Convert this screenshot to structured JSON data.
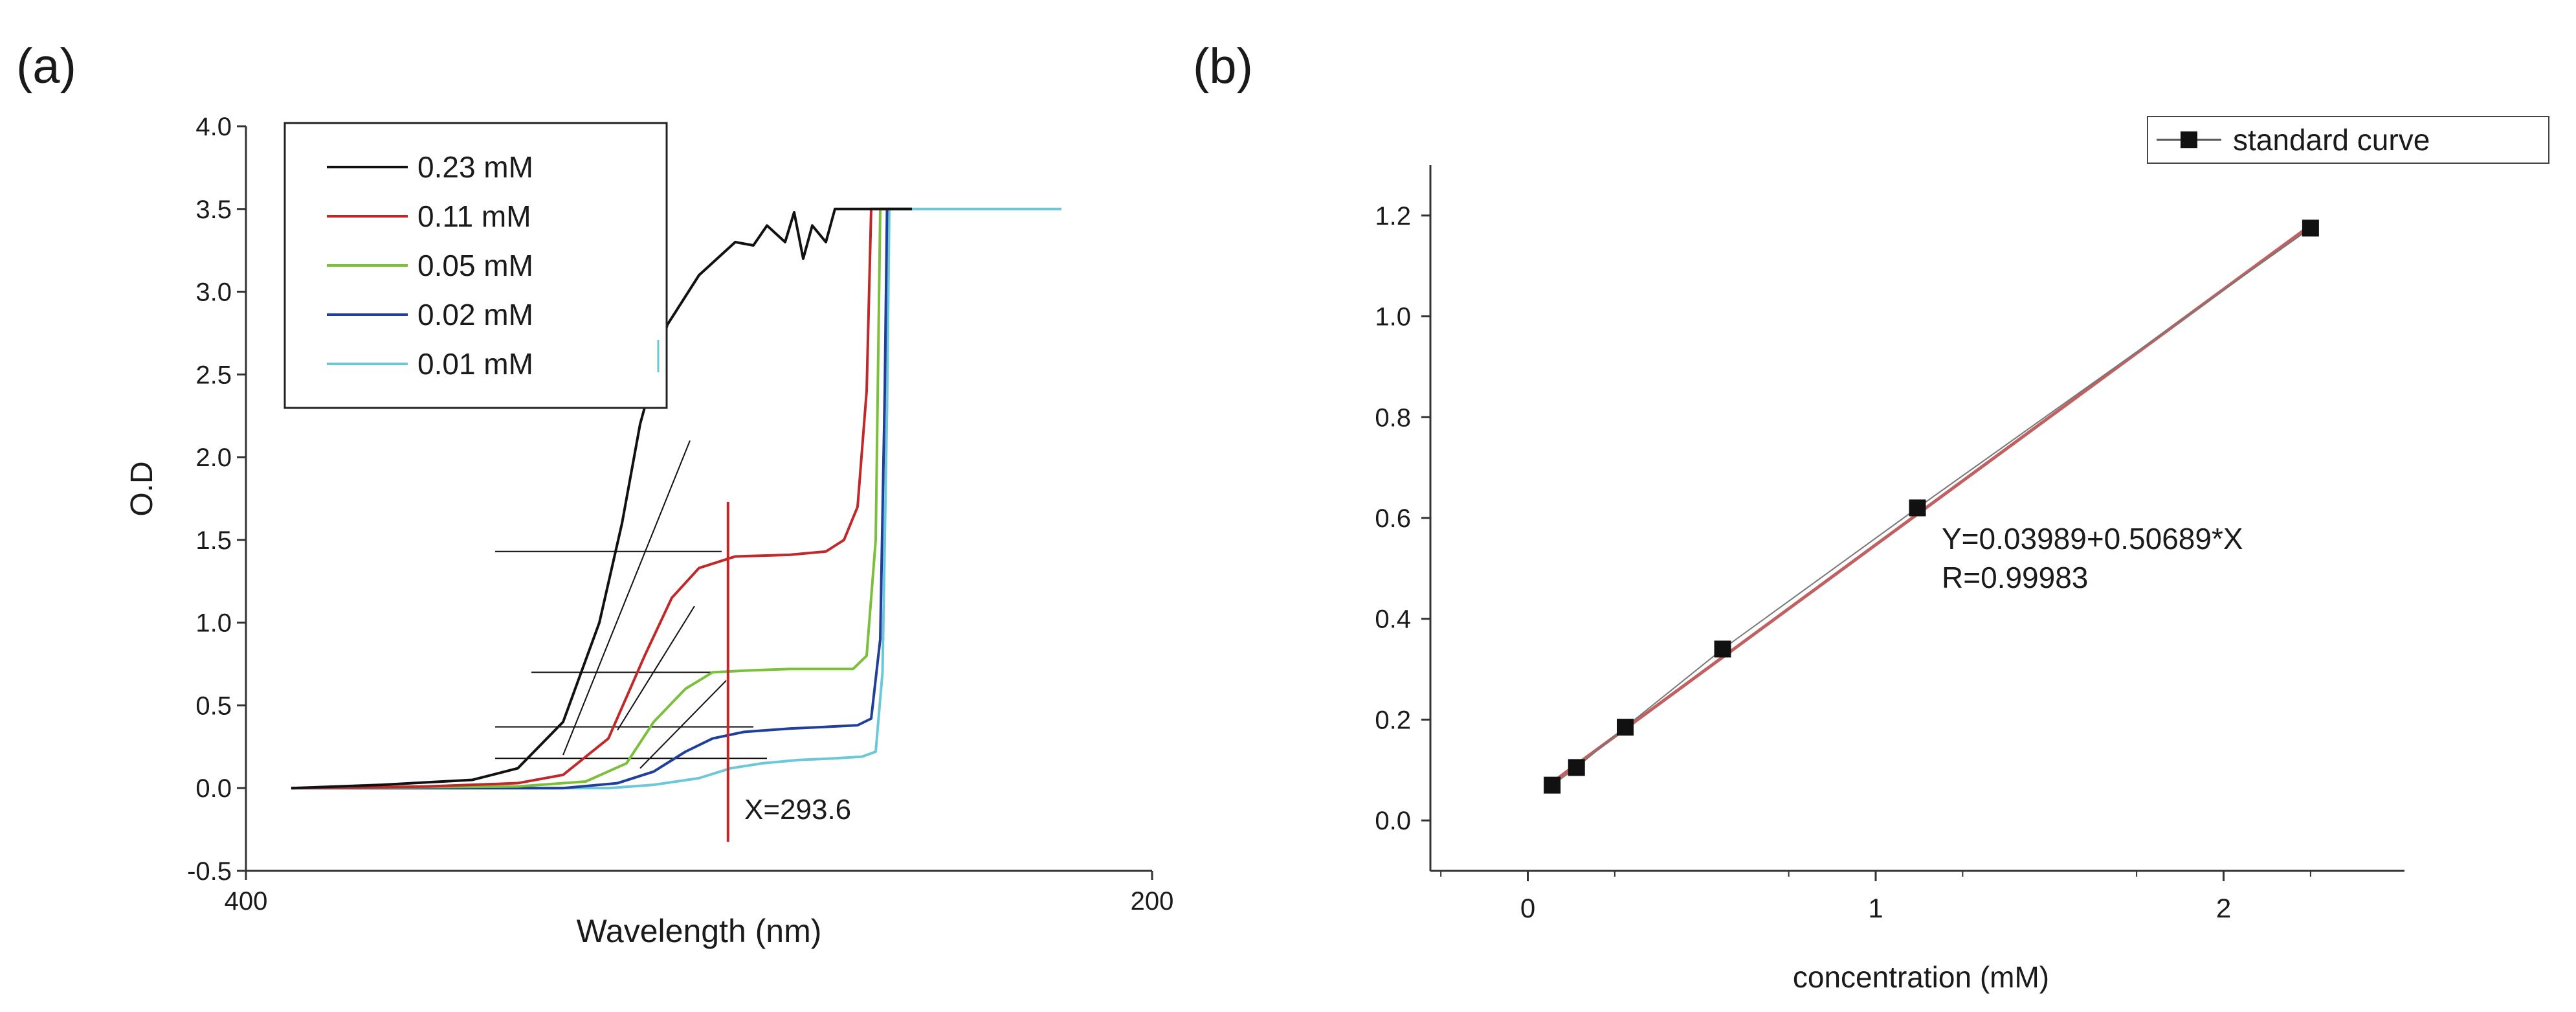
{
  "panels": {
    "a": {
      "label": "(a)"
    },
    "b": {
      "label": "(b)"
    }
  },
  "colors": {
    "s023": "#111111",
    "s011": "#c0282a",
    "s005": "#7cbf3c",
    "s002": "#1f3f9a",
    "s001": "#6cc8d8",
    "marker_line": "#c0282a",
    "fit_line": "#c06060"
  },
  "chart_data": [
    {
      "id": "a",
      "type": "line",
      "title": "",
      "xlabel": "Wavelength (nm)",
      "ylabel": "O.D",
      "xlim": [
        400,
        200
      ],
      "ylim": [
        -0.5,
        4.0
      ],
      "x_ticks": [
        "400",
        "200"
      ],
      "y_ticks": [
        "-0.5",
        "0.0",
        "0.5",
        "1.0",
        "1.5",
        "2.0",
        "2.5",
        "3.0",
        "3.5",
        "4.0"
      ],
      "legend": [
        "0.23 mM",
        "0.11 mM",
        "0.05 mM",
        "0.02 mM",
        "0.01 mM"
      ],
      "legend_position": "top-left",
      "annotation": "X=293.6",
      "marker_x": 293.6,
      "series": [
        {
          "name": "0.23 mM",
          "color_key": "s023",
          "points": [
            [
              390,
              0
            ],
            [
              370,
              0.02
            ],
            [
              350,
              0.05
            ],
            [
              340,
              0.12
            ],
            [
              330,
              0.4
            ],
            [
              322,
              1.0
            ],
            [
              317,
              1.6
            ],
            [
              313,
              2.2
            ],
            [
              307,
              2.8
            ],
            [
              300,
              3.1
            ],
            [
              292,
              3.3
            ],
            [
              288,
              3.28
            ],
            [
              285,
              3.4
            ],
            [
              281,
              3.3
            ],
            [
              279,
              3.48
            ],
            [
              277,
              3.2
            ],
            [
              275,
              3.4
            ],
            [
              272,
              3.3
            ],
            [
              270,
              3.5
            ],
            [
              265,
              3.5
            ],
            [
              253,
              3.5
            ]
          ]
        },
        {
          "name": "0.11 mM",
          "color_key": "s011",
          "points": [
            [
              390,
              0
            ],
            [
              360,
              0.01
            ],
            [
              340,
              0.03
            ],
            [
              330,
              0.08
            ],
            [
              320,
              0.3
            ],
            [
              312,
              0.8
            ],
            [
              306,
              1.15
            ],
            [
              300,
              1.33
            ],
            [
              292,
              1.4
            ],
            [
              280,
              1.41
            ],
            [
              272,
              1.43
            ],
            [
              268,
              1.5
            ],
            [
              265,
              1.7
            ],
            [
              263,
              2.4
            ],
            [
              262,
              3.5
            ],
            [
              258,
              3.5
            ]
          ]
        },
        {
          "name": "0.05 mM",
          "color_key": "s005",
          "points": [
            [
              390,
              0
            ],
            [
              340,
              0.01
            ],
            [
              325,
              0.04
            ],
            [
              316,
              0.15
            ],
            [
              310,
              0.4
            ],
            [
              303,
              0.6
            ],
            [
              297,
              0.7
            ],
            [
              290,
              0.71
            ],
            [
              280,
              0.72
            ],
            [
              272,
              0.72
            ],
            [
              266,
              0.72
            ],
            [
              263,
              0.8
            ],
            [
              261,
              1.5
            ],
            [
              260,
              3.5
            ],
            [
              253,
              3.5
            ]
          ]
        },
        {
          "name": "0.02 mM",
          "color_key": "s002",
          "points": [
            [
              390,
              0
            ],
            [
              330,
              0
            ],
            [
              318,
              0.03
            ],
            [
              310,
              0.1
            ],
            [
              303,
              0.22
            ],
            [
              297,
              0.3
            ],
            [
              290,
              0.34
            ],
            [
              280,
              0.36
            ],
            [
              272,
              0.37
            ],
            [
              265,
              0.38
            ],
            [
              262,
              0.42
            ],
            [
              260,
              0.9
            ],
            [
              259,
              2.4
            ],
            [
              258.5,
              3.5
            ],
            [
              253,
              3.5
            ]
          ]
        },
        {
          "name": "0.01 mM",
          "color_key": "s001",
          "points": [
            [
              390,
              0
            ],
            [
              320,
              0
            ],
            [
              310,
              0.02
            ],
            [
              300,
              0.06
            ],
            [
              293,
              0.12
            ],
            [
              286,
              0.15
            ],
            [
              278,
              0.17
            ],
            [
              270,
              0.18
            ],
            [
              264,
              0.19
            ],
            [
              261,
              0.22
            ],
            [
              259.5,
              0.7
            ],
            [
              258.5,
              2.3
            ],
            [
              258,
              3.5
            ],
            [
              220,
              3.5
            ]
          ]
        }
      ],
      "tangent_lines": [
        {
          "name": "0.23 mM tangent",
          "points": [
            [
              330,
              0.2
            ],
            [
              302,
              2.1
            ]
          ]
        },
        {
          "name": "0.23 mM plateau",
          "points": [
            [
              345,
              1.43
            ],
            [
              295,
              1.43
            ]
          ]
        },
        {
          "name": "0.11 mM tangent",
          "points": [
            [
              318,
              0.35
            ],
            [
              301,
              1.1
            ]
          ]
        },
        {
          "name": "0.11 mM plateau",
          "points": [
            [
              337,
              0.7
            ],
            [
              297,
              0.7
            ]
          ]
        },
        {
          "name": "0.05 mM tangent",
          "points": [
            [
              313,
              0.12
            ],
            [
              294,
              0.65
            ]
          ]
        },
        {
          "name": "0.05 mM plateau",
          "points": [
            [
              345,
              0.37
            ],
            [
              288,
              0.37
            ]
          ]
        },
        {
          "name": "0.02 mM plateau",
          "points": [
            [
              345,
              0.18
            ],
            [
              285,
              0.18
            ]
          ]
        }
      ]
    },
    {
      "id": "b",
      "type": "scatter",
      "title": "",
      "xlabel": "concentration (mM)",
      "ylabel": "",
      "xlim": [
        -0.28,
        2.52
      ],
      "ylim": [
        -0.1,
        1.3
      ],
      "x_ticks": [
        "0",
        "1",
        "2"
      ],
      "y_ticks": [
        "0.0",
        "0.2",
        "0.4",
        "0.6",
        "0.8",
        "1.0",
        "1.2"
      ],
      "legend": [
        "standard curve"
      ],
      "legend_position": "top-right",
      "equation": "Y=0.03989+0.50689*X",
      "r_value": "R=0.99983",
      "fit": {
        "intercept": 0.03989,
        "slope": 0.50689
      },
      "series": [
        {
          "name": "standard curve",
          "x": [
            0.07,
            0.14,
            0.28,
            0.56,
            1.12,
            2.25
          ],
          "y": [
            0.07,
            0.105,
            0.185,
            0.34,
            0.62,
            1.175
          ]
        }
      ]
    }
  ]
}
